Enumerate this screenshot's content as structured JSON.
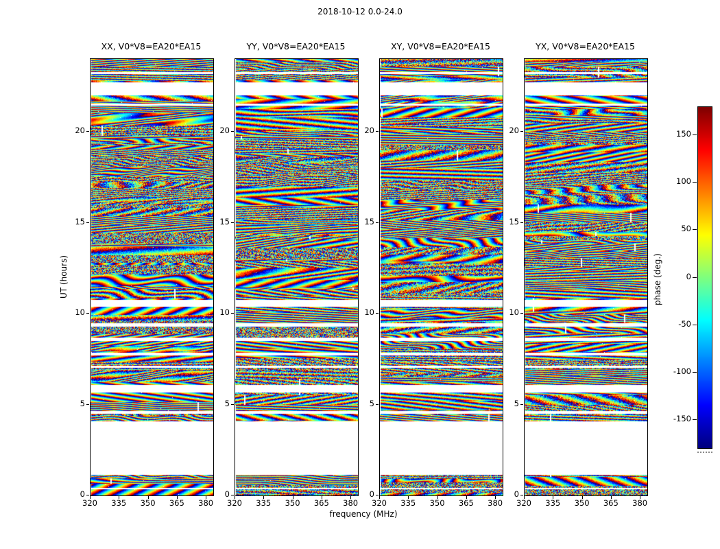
{
  "chart_data": {
    "type": "heatmap",
    "title": "2018-10-12 0.0-24.0",
    "xlabel": "frequency (MHz)",
    "ylabel": "UT (hours)",
    "panels": [
      {
        "pol": "XX",
        "title": "XX, V0*V8=EA20*EA15",
        "seed": 11
      },
      {
        "pol": "YY",
        "title": "YY, V0*V8=EA20*EA15",
        "seed": 23
      },
      {
        "pol": "XY",
        "title": "XY, V0*V8=EA20*EA15",
        "seed": 37
      },
      {
        "pol": "YX",
        "title": "YX, V0*V8=EA20*EA15",
        "seed": 53
      }
    ],
    "xlim": [
      320,
      383.5
    ],
    "ylim": [
      0,
      24
    ],
    "x_ticks": [
      320,
      335,
      350,
      365,
      380
    ],
    "y_ticks": [
      0,
      5,
      10,
      15,
      20
    ],
    "value_range_deg": [
      -180,
      180
    ],
    "colorbar": {
      "label": "phase (deg.)",
      "ticks": [
        150,
        100,
        50,
        0,
        -50,
        -100,
        -150
      ],
      "colormap": "jet",
      "colormap_stops": [
        "#00007f",
        "#0000ff",
        "#00ffff",
        "#80ff80",
        "#ffff00",
        "#ff0000",
        "#7f0000"
      ]
    },
    "data_gaps_hours": [
      [
        0.35,
        0.45
      ],
      [
        1.15,
        4.08
      ],
      [
        4.5,
        4.66
      ],
      [
        5.68,
        6.1
      ],
      [
        7.02,
        7.14
      ],
      [
        7.72,
        7.88
      ],
      [
        8.52,
        8.68
      ],
      [
        9.32,
        9.5
      ],
      [
        10.4,
        10.78
      ],
      [
        21.45,
        21.56
      ],
      [
        22.02,
        22.72
      ],
      [
        23.18,
        23.3
      ]
    ],
    "notes": "Wrapped interferometric visibility phase fringes vs frequency and UT time; white horizontal bands are times with no data"
  }
}
